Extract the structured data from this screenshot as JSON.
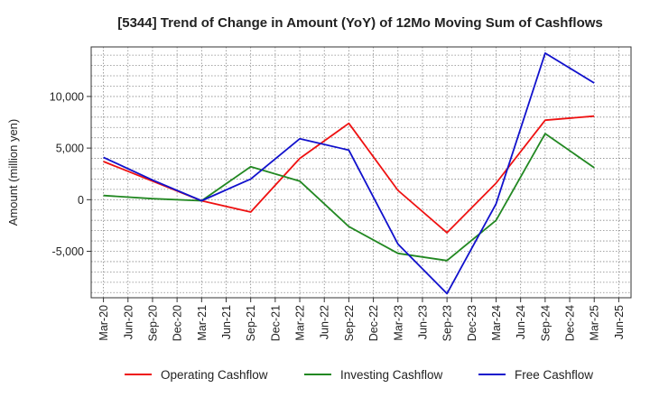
{
  "chart_data": {
    "type": "line",
    "title": "[5344]  Trend of Change in Amount (YoY) of 12Mo Moving Sum of Cashflows",
    "xlabel": "",
    "ylabel": "Amount (million yen)",
    "categories": [
      "Mar-20",
      "Jun-20",
      "Sep-20",
      "Dec-20",
      "Mar-21",
      "Jun-21",
      "Sep-21",
      "Dec-21",
      "Mar-22",
      "Jun-22",
      "Sep-22",
      "Dec-22",
      "Mar-23",
      "Jun-23",
      "Sep-23",
      "Dec-23",
      "Mar-24",
      "Jun-24",
      "Sep-24",
      "Dec-24",
      "Mar-25",
      "Jun-25"
    ],
    "ylim": [
      -9500,
      14800
    ],
    "yticks": [
      -5000,
      0,
      5000,
      10000
    ],
    "ytick_labels": [
      "-5,000",
      "0",
      "5,000",
      "10,000"
    ],
    "grid": true,
    "legend_position": "bottom",
    "series": [
      {
        "name": "Operating Cashflow",
        "color": "#ee1111",
        "points": [
          [
            0,
            3700
          ],
          [
            4,
            -100
          ],
          [
            6,
            -1200
          ],
          [
            8,
            4000
          ],
          [
            10,
            7400
          ],
          [
            12,
            900
          ],
          [
            14,
            -3200
          ],
          [
            16,
            1600
          ],
          [
            18,
            7700
          ],
          [
            20,
            8100
          ]
        ]
      },
      {
        "name": "Investing Cashflow",
        "color": "#228822",
        "points": [
          [
            0,
            400
          ],
          [
            2,
            100
          ],
          [
            4,
            -100
          ],
          [
            6,
            3200
          ],
          [
            8,
            1800
          ],
          [
            10,
            -2600
          ],
          [
            12,
            -5200
          ],
          [
            14,
            -5900
          ],
          [
            16,
            -2000
          ],
          [
            18,
            6400
          ],
          [
            20,
            3100
          ]
        ]
      },
      {
        "name": "Free Cashflow",
        "color": "#1111cc",
        "points": [
          [
            0,
            4100
          ],
          [
            2,
            1900
          ],
          [
            4,
            -100
          ],
          [
            6,
            2000
          ],
          [
            8,
            5900
          ],
          [
            10,
            4800
          ],
          [
            12,
            -4300
          ],
          [
            14,
            -9100
          ],
          [
            16,
            -400
          ],
          [
            18,
            14200
          ],
          [
            20,
            11300
          ]
        ]
      }
    ]
  }
}
